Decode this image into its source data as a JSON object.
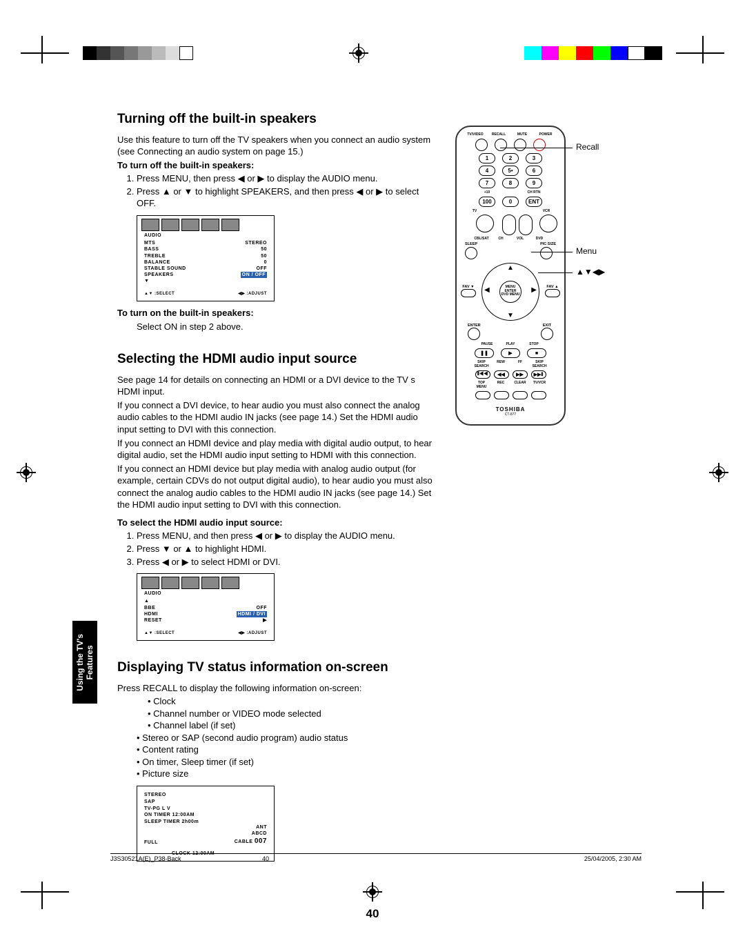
{
  "page_number": "40",
  "side_tab": "Using the TV's\nFeatures",
  "footer": {
    "left": "J3S30521A(E)_P38-Back",
    "mid": "40",
    "right": "25/04/2005, 2:30 AM"
  },
  "section1": {
    "heading": "Turning off the built-in speakers",
    "intro": "Use this feature to turn off the TV speakers when you connect an audio system (see  Connecting an audio system  on page 15.)",
    "sub1": "To turn off the built-in speakers:",
    "step1": "Press MENU, then press ◀ or ▶ to display the AUDIO menu.",
    "step2": "Press ▲ or ▼ to highlight SPEAKERS, and then press ◀ or ▶ to select OFF.",
    "sub2": "To turn on the built-in speakers:",
    "step_on": "Select ON in step 2 above."
  },
  "osd_audio1": {
    "title": "AUDIO",
    "rows": [
      {
        "l": "MTS",
        "r": "STEREO"
      },
      {
        "l": "BASS",
        "r": "50"
      },
      {
        "l": "TREBLE",
        "r": "50"
      },
      {
        "l": "BALANCE",
        "r": "0"
      },
      {
        "l": "STABLE SOUND",
        "r": "OFF"
      },
      {
        "l": "SPEAKERS",
        "r": "ON / OFF",
        "hl": true
      },
      {
        "l": "▼",
        "r": ""
      }
    ],
    "foot_l": "▲▼ :SELECT",
    "foot_r": "◀▶ :ADJUST"
  },
  "section2": {
    "heading": "Selecting the HDMI audio input source",
    "p1": "See page 14 for details on connecting an HDMI or a DVI device to the TV s HDMI input.",
    "p2": "If you connect a DVI device, to hear audio you must also connect the analog audio cables to the HDMI audio IN jacks (see page 14.) Set the HDMI audio input setting to  DVI  with this connection.",
    "p3": "If you connect an HDMI device and play media with digital audio output, to hear digital audio, set the HDMI audio input setting to  HDMI  with this connection.",
    "p4": "If you connect an HDMI device but play media with analog audio output (for example, certain CDVs do not output digital audio), to hear audio you must also connect the analog audio cables to the HDMI audio IN jacks (see page 14.) Set the HDMI audio input setting to  DVI  with this connection.",
    "sub": "To select the HDMI audio input source:",
    "s1": "Press MENU, and then press ◀ or ▶ to display the AUDIO menu.",
    "s2": "Press ▼ or ▲ to highlight HDMI.",
    "s3": "Press ◀ or ▶ to select HDMI or DVI."
  },
  "osd_audio2": {
    "title": "AUDIO",
    "rows": [
      {
        "l": "▲",
        "r": ""
      },
      {
        "l": "BBE",
        "r": "OFF"
      },
      {
        "l": "HDMI",
        "r": "HDMI / DVI",
        "hl": true
      },
      {
        "l": "RESET",
        "r": "▶"
      }
    ],
    "foot_l": "▲▼ :SELECT",
    "foot_r": "◀▶ :ADJUST"
  },
  "section3": {
    "heading": "Displaying TV status information on-screen",
    "intro": "Press RECALL to display the following information on-screen:",
    "b1": "Clock",
    "b2": "Channel number or VIDEO mode selected",
    "b3": "Channel label (if set)",
    "b4": "Stereo or SAP (second audio program) audio status",
    "b5": "Content rating",
    "b6": "On timer, Sleep timer (if set)",
    "b7": "Picture size"
  },
  "osd_status": {
    "l1": "STEREO",
    "l2": "SAP",
    "l3": "TV-PG     L   V",
    "l4": "ON TIMER    12:00AM",
    "l5": "SLEEP TIMER 2h00m",
    "bl": "FULL",
    "r1": "ANT",
    "r2": "ABCD",
    "r3_pre": "CABLE ",
    "r3_ch": "007",
    "clock": "CLOCK   12:00AM"
  },
  "remote": {
    "top_labels": [
      "TV/VIDEO",
      "RECALL",
      "MUTE",
      "POWER"
    ],
    "mode_labels": [
      "TV",
      "VCR"
    ],
    "row_labels": [
      "CBL/SAT",
      "CH",
      "VOL",
      "DVD"
    ],
    "sleep": "SLEEP",
    "picsize": "PIC SIZE",
    "fav_l": "FAV ▼",
    "fav_r": "FAV ▲",
    "center": "MENU\nENTER\nDVD MENU",
    "enter": "ENTER",
    "exit": "EXIT",
    "play_row": [
      "PAUSE",
      "PLAY",
      "STOP"
    ],
    "play_sym": [
      "❚❚",
      "▶",
      "■"
    ],
    "seek_row": [
      "SKIP SEARCH",
      "REW",
      "FF",
      "SKIP SEARCH"
    ],
    "seek_sym": [
      "⦀◀◀",
      "◀◀",
      "▶▶",
      "▶▶⦀"
    ],
    "bottom_labels": [
      "TOP MENU",
      "REC",
      "CLEAR",
      "TV/VCR"
    ],
    "num_bottom": [
      "+10",
      "",
      "CH RTN"
    ],
    "num_bottom2": [
      "100",
      "0",
      "ENT"
    ],
    "brand": "TOSHIBA",
    "model": "CT-877"
  },
  "callouts": {
    "recall": "Recall",
    "menu": "Menu",
    "arrows": "▲▼◀▶"
  },
  "colors": {
    "bw": [
      "#000",
      "#333",
      "#555",
      "#777",
      "#999",
      "#bbb",
      "#ddd",
      "#fff"
    ],
    "bw_border": "#000",
    "rgb": [
      "#00ffff",
      "#ff00ff",
      "#ffff00",
      "#ff0000",
      "#00ff00",
      "#0000ff",
      "#ffffff",
      "#000000"
    ]
  }
}
